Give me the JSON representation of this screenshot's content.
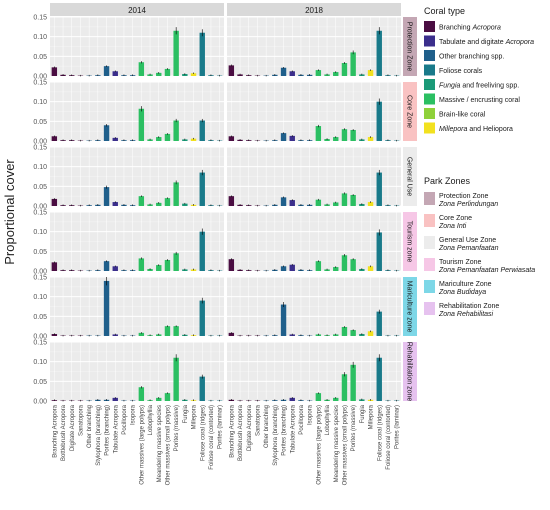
{
  "chart_data": {
    "type": "bar",
    "ylabel": "Proportional cover",
    "ylim": [
      0,
      0.15
    ],
    "yticks": [
      "0.00",
      "0.05",
      "0.10",
      "0.15"
    ],
    "grid": true,
    "years": [
      "2014",
      "2018"
    ],
    "categories": [
      "Branching Acropora",
      "Bottlebrush Acropora",
      "Digitate Acropora",
      "Sanatopora",
      "Other branching",
      "Stylophora (branching)",
      "Porites (branching)",
      "Tabulate Acropora",
      "Pocillopora",
      "Isopora",
      "Other massives (large polyps)",
      "Lobophyllia",
      "Meandering massive species",
      "Other massives (small polyps)",
      "Porites (massive)",
      "Fungia",
      "Millepora",
      "Foliose coral (ridges)",
      "Foliose coral (contorted)",
      "Porites (laminar)"
    ],
    "category_types": [
      0,
      0,
      0,
      0,
      2,
      2,
      2,
      1,
      2,
      2,
      5,
      5,
      5,
      5,
      5,
      4,
      7,
      3,
      3,
      3
    ],
    "coral_types": [
      {
        "label": "Branching ",
        "italic": "Acropora",
        "suffix": "",
        "color": "#4a0d42"
      },
      {
        "label": "Tabulate and digitate ",
        "italic": "Acropora",
        "suffix": "",
        "color": "#3b2e8c"
      },
      {
        "label": "Other branching spp.",
        "italic": "",
        "suffix": "",
        "color": "#1f5f8b"
      },
      {
        "label": "Foliose corals",
        "italic": "",
        "suffix": "",
        "color": "#197a8a"
      },
      {
        "label": "",
        "italic": "Fungia",
        "suffix": " and freeliving spp.",
        "color": "#1a9a78"
      },
      {
        "label": "Massive / encrusting coral",
        "italic": "",
        "suffix": "",
        "color": "#2bbf62"
      },
      {
        "label": "Brain-like coral",
        "italic": "",
        "suffix": "",
        "color": "#8fd13a"
      },
      {
        "label": "",
        "italic": "Millepora",
        "suffix": " and Heliopora",
        "color": "#f2e11f"
      }
    ],
    "coral_type_title": "Coral type",
    "park_zone_title": "Park Zones",
    "park_zones": [
      {
        "name": "Protection Zone",
        "local": "Zona Perlindungan",
        "color": "#c4a7b4"
      },
      {
        "name": "Core Zone",
        "local": "Zona Inti",
        "color": "#f9c2c2"
      },
      {
        "name": "General Use Zone",
        "local": "Zona Pemanfaatan",
        "color": "#ececec"
      },
      {
        "name": "Tourism Zone",
        "local": "Zona Pemanfaatan Perwiasata",
        "color": "#f6c7e6"
      },
      {
        "name": "Mariculture Zone",
        "local": "Zona Budidaya",
        "color": "#7dd7e7"
      },
      {
        "name": "Rehabilitation Zone",
        "local": "Zona Rehabilitasi",
        "color": "#e6c2ef"
      }
    ],
    "panels": [
      {
        "zone": "Protection Zone",
        "values": [
          [
            0.022,
            0.003,
            0.002,
            0.001,
            0.001,
            0.002,
            0.025,
            0.012,
            0.002,
            0.002,
            0.035,
            0.004,
            0.008,
            0.018,
            0.115,
            0.005,
            0.007,
            0.11,
            0.002,
            0.001
          ],
          [
            0.027,
            0.004,
            0.002,
            0.001,
            0.001,
            0.003,
            0.021,
            0.012,
            0.003,
            0.003,
            0.015,
            0.004,
            0.01,
            0.033,
            0.06,
            0.004,
            0.015,
            0.115,
            0.002,
            0.001
          ]
        ]
      },
      {
        "zone": "Core Zone",
        "values": [
          [
            0.012,
            0.002,
            0.002,
            0.001,
            0.001,
            0.002,
            0.04,
            0.008,
            0.002,
            0.002,
            0.082,
            0.004,
            0.01,
            0.018,
            0.052,
            0.004,
            0.006,
            0.052,
            0.002,
            0.001
          ],
          [
            0.012,
            0.003,
            0.002,
            0.001,
            0.001,
            0.002,
            0.02,
            0.013,
            0.002,
            0.002,
            0.038,
            0.005,
            0.01,
            0.03,
            0.028,
            0.004,
            0.01,
            0.1,
            0.002,
            0.001
          ]
        ]
      },
      {
        "zone": "General Use",
        "values": [
          [
            0.018,
            0.002,
            0.002,
            0.001,
            0.002,
            0.003,
            0.048,
            0.01,
            0.003,
            0.002,
            0.025,
            0.004,
            0.008,
            0.02,
            0.06,
            0.006,
            0.003,
            0.085,
            0.002,
            0.001
          ],
          [
            0.025,
            0.003,
            0.002,
            0.001,
            0.001,
            0.003,
            0.022,
            0.015,
            0.003,
            0.003,
            0.016,
            0.004,
            0.009,
            0.032,
            0.028,
            0.005,
            0.01,
            0.085,
            0.002,
            0.001
          ]
        ]
      },
      {
        "zone": "Tourism zone",
        "values": [
          [
            0.022,
            0.002,
            0.002,
            0.001,
            0.001,
            0.002,
            0.025,
            0.012,
            0.002,
            0.002,
            0.032,
            0.005,
            0.015,
            0.028,
            0.045,
            0.004,
            0.004,
            0.1,
            0.002,
            0.001
          ],
          [
            0.03,
            0.003,
            0.002,
            0.001,
            0.001,
            0.003,
            0.012,
            0.016,
            0.003,
            0.002,
            0.025,
            0.004,
            0.01,
            0.04,
            0.03,
            0.005,
            0.012,
            0.098,
            0.002,
            0.001
          ]
        ]
      },
      {
        "zone": "Mariculture zone",
        "values": [
          [
            0.005,
            0.001,
            0.001,
            0.001,
            0.001,
            0.001,
            0.14,
            0.004,
            0.001,
            0.001,
            0.008,
            0.002,
            0.004,
            0.025,
            0.025,
            0.003,
            0.002,
            0.09,
            0.001,
            0.001
          ],
          [
            0.008,
            0.001,
            0.001,
            0.001,
            0.001,
            0.002,
            0.08,
            0.004,
            0.002,
            0.001,
            0.004,
            0.002,
            0.004,
            0.023,
            0.015,
            0.005,
            0.012,
            0.062,
            0.001,
            0.001
          ]
        ]
      },
      {
        "zone": "Rehabilitation zone",
        "values": [
          [
            0.002,
            0.001,
            0.001,
            0.001,
            0.001,
            0.003,
            0.003,
            0.008,
            0.001,
            0.001,
            0.035,
            0.002,
            0.008,
            0.02,
            0.11,
            0.003,
            0.002,
            0.062,
            0.001,
            0.001
          ],
          [
            0.003,
            0.001,
            0.001,
            0.001,
            0.001,
            0.002,
            0.003,
            0.008,
            0.002,
            0.001,
            0.02,
            0.003,
            0.008,
            0.068,
            0.092,
            0.004,
            0.003,
            0.11,
            0.001,
            0.001
          ]
        ]
      }
    ]
  }
}
